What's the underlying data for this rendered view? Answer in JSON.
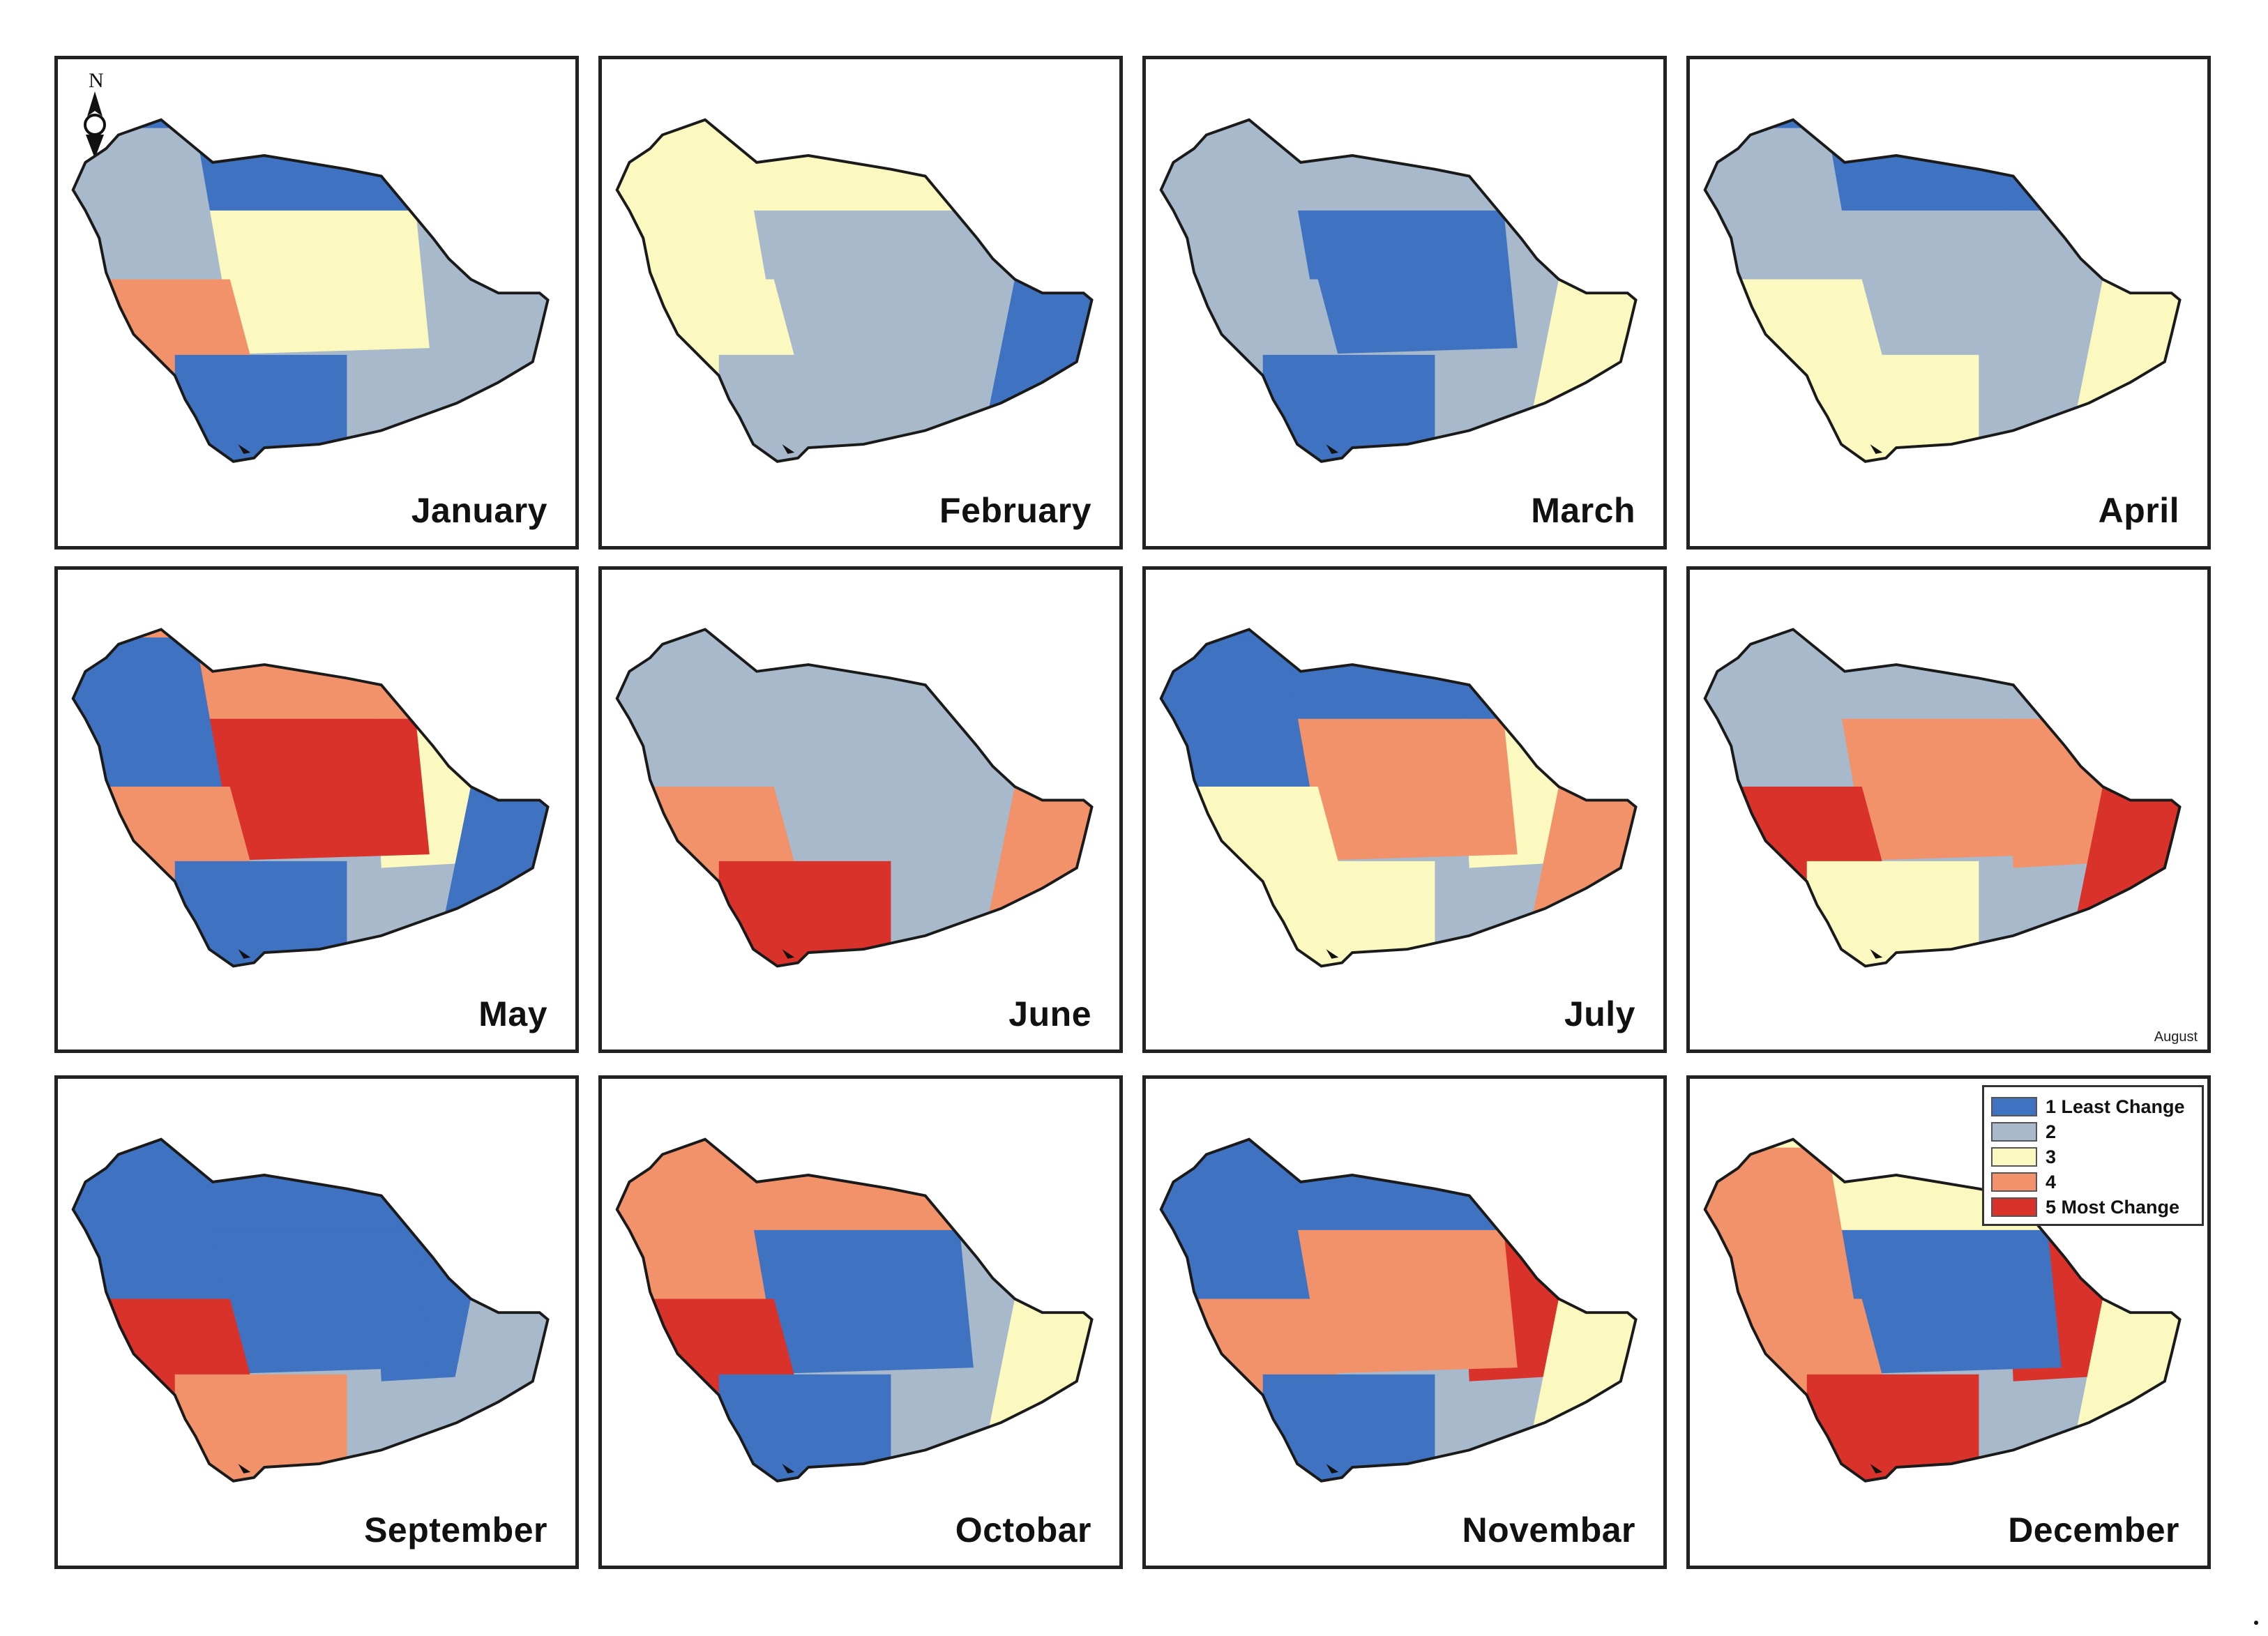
{
  "figure": {
    "panels": [
      {
        "month": "January",
        "region_classes": {
          "north": 1,
          "northwest": 2,
          "center": 3,
          "west": 4,
          "south": 1,
          "east": 2,
          "southeast": 2
        }
      },
      {
        "month": "February",
        "region_classes": {
          "north": 3,
          "northwest": 3,
          "center": 2,
          "west": 3,
          "south": 2,
          "east": 2,
          "southeast": 1
        }
      },
      {
        "month": "March",
        "region_classes": {
          "north": 2,
          "northwest": 2,
          "center": 1,
          "west": 2,
          "south": 1,
          "east": 2,
          "southeast": 3
        }
      },
      {
        "month": "April",
        "region_classes": {
          "north": 1,
          "northwest": 2,
          "center": 2,
          "west": 3,
          "south": 3,
          "east": 2,
          "southeast": 3
        }
      },
      {
        "month": "May",
        "region_classes": {
          "north": 4,
          "northwest": 1,
          "center": 5,
          "west": 4,
          "south": 1,
          "east": 3,
          "southeast": 1
        }
      },
      {
        "month": "June",
        "region_classes": {
          "north": 2,
          "northwest": 2,
          "center": 2,
          "west": 4,
          "south": 5,
          "east": 2,
          "southeast": 4
        }
      },
      {
        "month": "July",
        "region_classes": {
          "north": 1,
          "northwest": 1,
          "center": 4,
          "west": 3,
          "south": 3,
          "east": 3,
          "southeast": 4
        }
      },
      {
        "month": "",
        "region_classes": {
          "north": 2,
          "northwest": 2,
          "center": 4,
          "west": 5,
          "south": 3,
          "east": 4,
          "southeast": 5
        },
        "small_label": "August"
      },
      {
        "month": "September",
        "region_classes": {
          "north": 1,
          "northwest": 1,
          "center": 1,
          "west": 5,
          "south": 4,
          "east": 1,
          "southeast": 2
        }
      },
      {
        "month": "Octobar",
        "region_classes": {
          "north": 4,
          "northwest": 4,
          "center": 1,
          "west": 5,
          "south": 1,
          "east": 2,
          "southeast": 3
        }
      },
      {
        "month": "Novembar",
        "region_classes": {
          "north": 1,
          "northwest": 1,
          "center": 4,
          "west": 4,
          "south": 1,
          "east": 5,
          "southeast": 3
        }
      },
      {
        "month": "December",
        "region_classes": {
          "north": 3,
          "northwest": 4,
          "center": 1,
          "west": 4,
          "south": 5,
          "east": 5,
          "southeast": 3
        }
      }
    ],
    "north_symbol": "N"
  },
  "legend": {
    "items": [
      {
        "label": "1 Least Change",
        "color": "#3f72c0"
      },
      {
        "label": "2",
        "color": "#a7b9cb"
      },
      {
        "label": "3",
        "color": "#fbf8c0"
      },
      {
        "label": "4",
        "color": "#f2926b"
      },
      {
        "label": "5 Most Change",
        "color": "#d8322a"
      }
    ]
  },
  "palette": {
    "1": "#3f72c0",
    "2": "#a7b9cb",
    "3": "#fbf8c0",
    "4": "#f2926b",
    "5": "#d8322a",
    "outline": "#1a1a1a"
  }
}
